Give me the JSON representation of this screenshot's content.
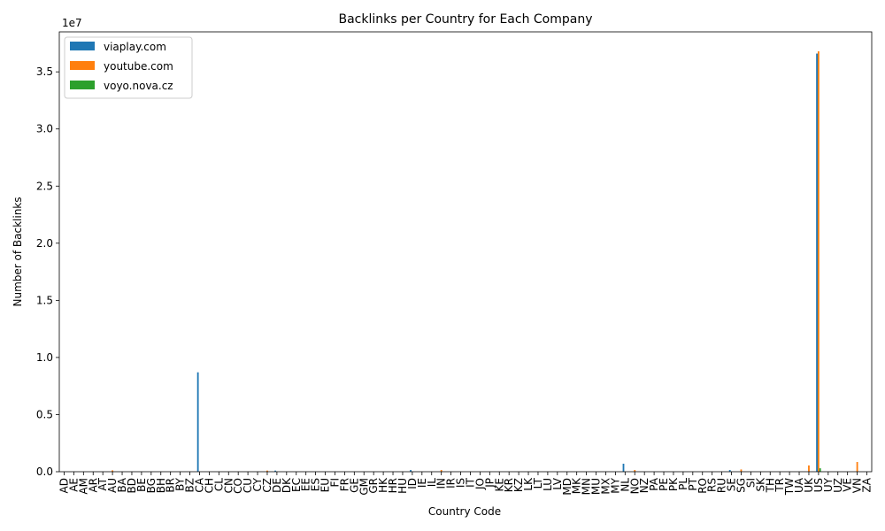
{
  "chart_data": {
    "type": "bar",
    "title": "Backlinks per Country for Each Company",
    "xlabel": "Country Code",
    "ylabel": "Number of Backlinks",
    "offset_text": "1e7",
    "ylim": [
      0,
      38500000
    ],
    "yticks": [
      0,
      5000000,
      10000000,
      15000000,
      20000000,
      25000000,
      30000000,
      35000000
    ],
    "ytick_labels": [
      "0.0",
      "0.5",
      "1.0",
      "1.5",
      "2.0",
      "2.5",
      "3.0",
      "3.5"
    ],
    "legend_position": "top-left",
    "grid": false,
    "categories": [
      "AD",
      "AE",
      "AM",
      "AR",
      "AT",
      "AU",
      "BA",
      "BD",
      "BE",
      "BG",
      "BH",
      "BR",
      "BY",
      "BZ",
      "CA",
      "CH",
      "CL",
      "CN",
      "CO",
      "CU",
      "CY",
      "CZ",
      "DE",
      "DK",
      "EC",
      "EE",
      "ES",
      "EU",
      "FI",
      "FR",
      "GE",
      "GM",
      "GR",
      "HK",
      "HR",
      "HU",
      "ID",
      "IE",
      "IL",
      "IN",
      "IR",
      "IS",
      "IT",
      "JO",
      "JP",
      "KE",
      "KR",
      "KZ",
      "LK",
      "LT",
      "LU",
      "LV",
      "MD",
      "MK",
      "MN",
      "MU",
      "MX",
      "MY",
      "NL",
      "NO",
      "NZ",
      "PA",
      "PE",
      "PK",
      "PL",
      "PT",
      "RO",
      "RS",
      "RU",
      "SE",
      "SG",
      "SI",
      "SK",
      "TH",
      "TR",
      "TW",
      "UA",
      "UK",
      "US",
      "UY",
      "UZ",
      "VE",
      "VN",
      "ZA"
    ],
    "series": [
      {
        "name": "viaplay.com",
        "color": "#1f77b4",
        "values": [
          0,
          0,
          0,
          0,
          0,
          0,
          0,
          0,
          0,
          0,
          0,
          0,
          0,
          0,
          8700000,
          0,
          0,
          0,
          0,
          0,
          0,
          0,
          100000,
          0,
          0,
          0,
          0,
          0,
          0,
          0,
          0,
          0,
          0,
          0,
          0,
          0,
          150000,
          0,
          0,
          0,
          0,
          0,
          0,
          0,
          0,
          0,
          0,
          0,
          0,
          0,
          0,
          0,
          0,
          0,
          0,
          0,
          0,
          0,
          700000,
          0,
          0,
          0,
          0,
          0,
          0,
          0,
          0,
          0,
          0,
          150000,
          0,
          0,
          0,
          0,
          0,
          0,
          0,
          0,
          36600000,
          0,
          0,
          0,
          0,
          0
        ]
      },
      {
        "name": "youtube.com",
        "color": "#ff7f0e",
        "values": [
          0,
          0,
          0,
          0,
          0,
          120000,
          0,
          0,
          0,
          0,
          0,
          0,
          0,
          0,
          0,
          0,
          0,
          0,
          0,
          0,
          0,
          100000,
          0,
          0,
          0,
          0,
          0,
          0,
          0,
          0,
          0,
          0,
          0,
          0,
          0,
          0,
          0,
          0,
          0,
          150000,
          0,
          0,
          0,
          0,
          0,
          0,
          0,
          0,
          0,
          0,
          0,
          0,
          0,
          0,
          0,
          0,
          0,
          0,
          0,
          150000,
          0,
          0,
          0,
          0,
          0,
          0,
          0,
          0,
          0,
          0,
          200000,
          0,
          0,
          0,
          0,
          0,
          0,
          550000,
          36800000,
          0,
          0,
          0,
          850000,
          0
        ]
      },
      {
        "name": "voyo.nova.cz",
        "color": "#2ca02c",
        "values": [
          0,
          0,
          0,
          0,
          0,
          0,
          0,
          0,
          0,
          0,
          0,
          0,
          0,
          0,
          0,
          0,
          0,
          0,
          0,
          0,
          0,
          0,
          0,
          0,
          0,
          0,
          0,
          0,
          0,
          0,
          0,
          0,
          0,
          0,
          0,
          0,
          0,
          0,
          0,
          0,
          0,
          0,
          0,
          0,
          0,
          0,
          0,
          0,
          0,
          0,
          0,
          0,
          0,
          0,
          0,
          0,
          0,
          0,
          0,
          0,
          0,
          0,
          0,
          0,
          0,
          0,
          0,
          0,
          0,
          0,
          0,
          0,
          0,
          0,
          0,
          0,
          0,
          0,
          300000,
          0,
          0,
          0,
          0,
          0
        ]
      }
    ]
  }
}
